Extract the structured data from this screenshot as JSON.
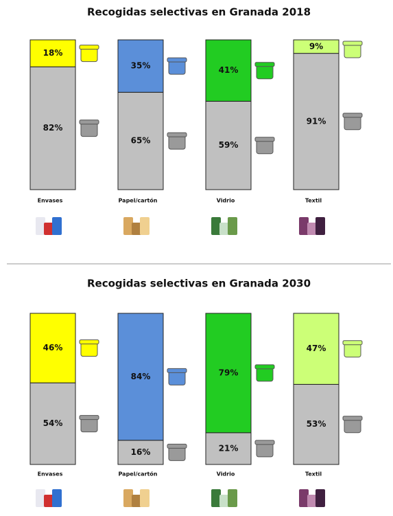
{
  "chart_data": [
    {
      "type": "stacked-bar",
      "title": "Recogidas selectivas en Granada 2018",
      "categories": [
        "Envases",
        "Papel/cartón",
        "Vidrio",
        "Textil"
      ],
      "series": [
        {
          "color": "#c0c0c0",
          "values": [
            82,
            65,
            59,
            91
          ],
          "value_labels": [
            "82%",
            "65%",
            "59%",
            "91%"
          ]
        },
        {
          "colors": [
            "#ffff00",
            "#5b8fd9",
            "#22cc22",
            "#ccff77"
          ],
          "values": [
            18,
            35,
            41,
            9
          ],
          "value_labels": [
            "18%",
            "35%",
            "41%",
            "9%"
          ]
        }
      ]
    },
    {
      "type": "stacked-bar",
      "title": "Recogidas selectivas en Granada 2030",
      "categories": [
        "Envases",
        "Papel/cartón",
        "Vidrio",
        "Textil"
      ],
      "series": [
        {
          "color": "#c0c0c0",
          "values": [
            54,
            16,
            21,
            53
          ],
          "value_labels": [
            "54%",
            "16%",
            "21%",
            "53%"
          ]
        },
        {
          "colors": [
            "#ffff00",
            "#5b8fd9",
            "#22cc22",
            "#ccff77"
          ],
          "values": [
            46,
            84,
            79,
            47
          ],
          "value_labels": [
            "46%",
            "84%",
            "79%",
            "47%"
          ]
        }
      ]
    }
  ]
}
